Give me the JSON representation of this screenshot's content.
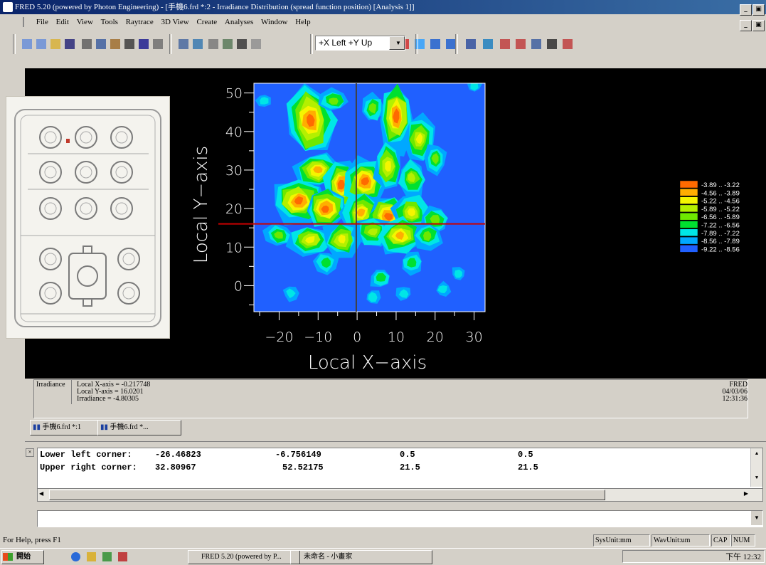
{
  "window": {
    "title": "FRED 5.20 (powered by Photon Engineering) - [手機6.frd *:2 - Irradiance Distribution (spread function position)  [Analysis 1]]",
    "controls": [
      "_",
      "▣",
      "×"
    ]
  },
  "menu": [
    {
      "label": "File",
      "mnemonic": "F"
    },
    {
      "label": "Edit",
      "mnemonic": "E"
    },
    {
      "label": "View",
      "mnemonic": "V"
    },
    {
      "label": "Tools",
      "mnemonic": "T"
    },
    {
      "label": "Raytrace",
      "mnemonic": "R"
    },
    {
      "label": "3D View",
      "mnemonic": "3"
    },
    {
      "label": "Create",
      "mnemonic": "C"
    },
    {
      "label": "Analyses",
      "mnemonic": "A"
    },
    {
      "label": "Window",
      "mnemonic": "W"
    },
    {
      "label": "Help",
      "mnemonic": "H"
    }
  ],
  "toolbar": {
    "view_combo": "+X Left +Y Up",
    "icons": [
      "new-icon",
      "new-template-icon",
      "open-icon",
      "save-icon",
      "cut-icon",
      "copy-icon",
      "paste-icon",
      "print-icon",
      "help-icon",
      "find-icon",
      "edit-icon",
      "zoom-icon",
      "move-icon",
      "rotate-icon",
      "render-icon",
      "grid-icon",
      "trace-icon",
      "trace-all-icon",
      "trace-selected-icon",
      "trace-advanced-icon",
      "clear-rays-icon",
      "ray-arrow-icon",
      "ray-arrow2-icon",
      "ray-text-icon",
      "list-icon",
      "check-icon",
      "numbers-icon",
      "table-icon",
      "chart-icon",
      "monitor-icon",
      "eye-icon"
    ]
  },
  "plot": {
    "xlabel": "Local X−axis",
    "ylabel": "Local Y−axis",
    "x_ticks": [
      "−20",
      "−10",
      "0",
      "10",
      "20",
      "30"
    ],
    "y_ticks": [
      "50",
      "40",
      "30",
      "20",
      "10",
      "0"
    ],
    "crosshair_color": "#c80000"
  },
  "chart_data": {
    "type": "heatmap",
    "title": "",
    "xlabel": "Local X−axis",
    "ylabel": "Local Y−axis",
    "xlim": [
      -26.46823,
      32.80967
    ],
    "ylim": [
      -6.756149,
      52.52175
    ],
    "legend_position": "right",
    "legend": [
      {
        "label": "-3.89 .. -3.22",
        "color": "#ff6a00"
      },
      {
        "label": "-4.56 .. -3.89",
        "color": "#ffae00"
      },
      {
        "label": "-5.22 .. -4.56",
        "color": "#f5f500"
      },
      {
        "label": "-5.89 .. -5.22",
        "color": "#b4f000"
      },
      {
        "label": "-6.56 .. -5.89",
        "color": "#6ee800"
      },
      {
        "label": "-7.22 .. -6.56",
        "color": "#00e030"
      },
      {
        "label": "-7.89 .. -7.22",
        "color": "#00e6e6"
      },
      {
        "label": "-8.56 .. -7.89",
        "color": "#00a8ff"
      },
      {
        "label": "-9.22 .. -8.56",
        "color": "#2060ff"
      }
    ],
    "crosshair": {
      "x": -0.217748,
      "y": 16.0201
    }
  },
  "readout": {
    "label": "Irradiance",
    "x_line": "Local X-axis = -0.217748",
    "y_line": "Local Y-axis = 16.0201",
    "value_line": "Irradiance = -4.80305",
    "stamp_app": "FRED",
    "stamp_date": "04/03/06",
    "stamp_time": "12:31:36"
  },
  "tabs": [
    "手機6.frd *:1",
    "手機6.frd *..."
  ],
  "output": {
    "rows": [
      {
        "label": "Lower left corner:",
        "a": "-26.46823",
        "b": "-6.756149",
        "c": "0.5",
        "d": "0.5"
      },
      {
        "label": "Upper right corner:",
        "a": "32.80967",
        "b": "52.52175",
        "c": "21.5",
        "d": "21.5"
      }
    ]
  },
  "status": {
    "help": "For Help, press F1",
    "sysunit": "SysUnit:mm",
    "wavunit": "WavUnit:um",
    "cap": "CAP",
    "num": "NUM"
  },
  "taskbar": {
    "start": "開始",
    "tasks": [
      "FRED 5.20 (powered by P...",
      "未命名 - 小畫家"
    ],
    "clock": "下午 12:32"
  }
}
